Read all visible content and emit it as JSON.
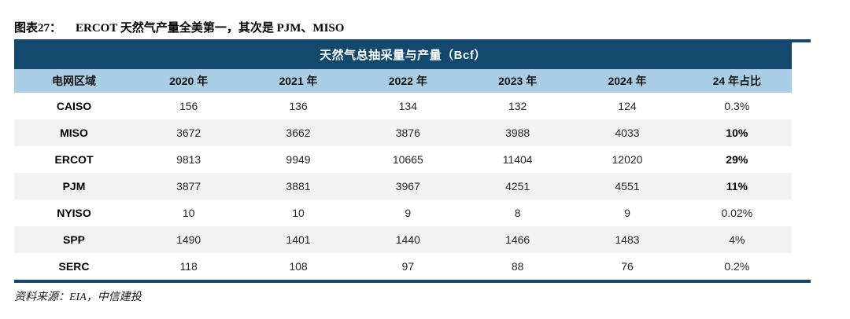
{
  "figure": {
    "label": "图表27：",
    "title": "ERCOT 天然气产量全美第一，其次是 PJM、MISO",
    "source": "资料来源：EIA，中信建投"
  },
  "table": {
    "title": "天然气总抽采量与产量（Bcf）",
    "columns": [
      "电网区域",
      "2020 年",
      "2021 年",
      "2022 年",
      "2023 年",
      "2024 年",
      "24 年占比"
    ],
    "rows": [
      {
        "region": "CAISO",
        "values": [
          "156",
          "136",
          "134",
          "132",
          "124"
        ],
        "share": "0.3%",
        "share_bold": false
      },
      {
        "region": "MISO",
        "values": [
          "3672",
          "3662",
          "3876",
          "3988",
          "4033"
        ],
        "share": "10%",
        "share_bold": true
      },
      {
        "region": "ERCOT",
        "values": [
          "9813",
          "9949",
          "10665",
          "11404",
          "12020"
        ],
        "share": "29%",
        "share_bold": true
      },
      {
        "region": "PJM",
        "values": [
          "3877",
          "3881",
          "3967",
          "4251",
          "4551"
        ],
        "share": "11%",
        "share_bold": true
      },
      {
        "region": "NYISO",
        "values": [
          "10",
          "10",
          "9",
          "8",
          "9"
        ],
        "share": "0.02%",
        "share_bold": false
      },
      {
        "region": "SPP",
        "values": [
          "1490",
          "1401",
          "1440",
          "1466",
          "1483"
        ],
        "share": "4%",
        "share_bold": false
      },
      {
        "region": "SERC",
        "values": [
          "118",
          "108",
          "97",
          "88",
          "76"
        ],
        "share": "0.2%",
        "share_bold": false
      }
    ]
  },
  "colors": {
    "navy": "#12496D",
    "light_blue": "#A8CDE4",
    "alt_row_gray": "#F2F2F2"
  }
}
